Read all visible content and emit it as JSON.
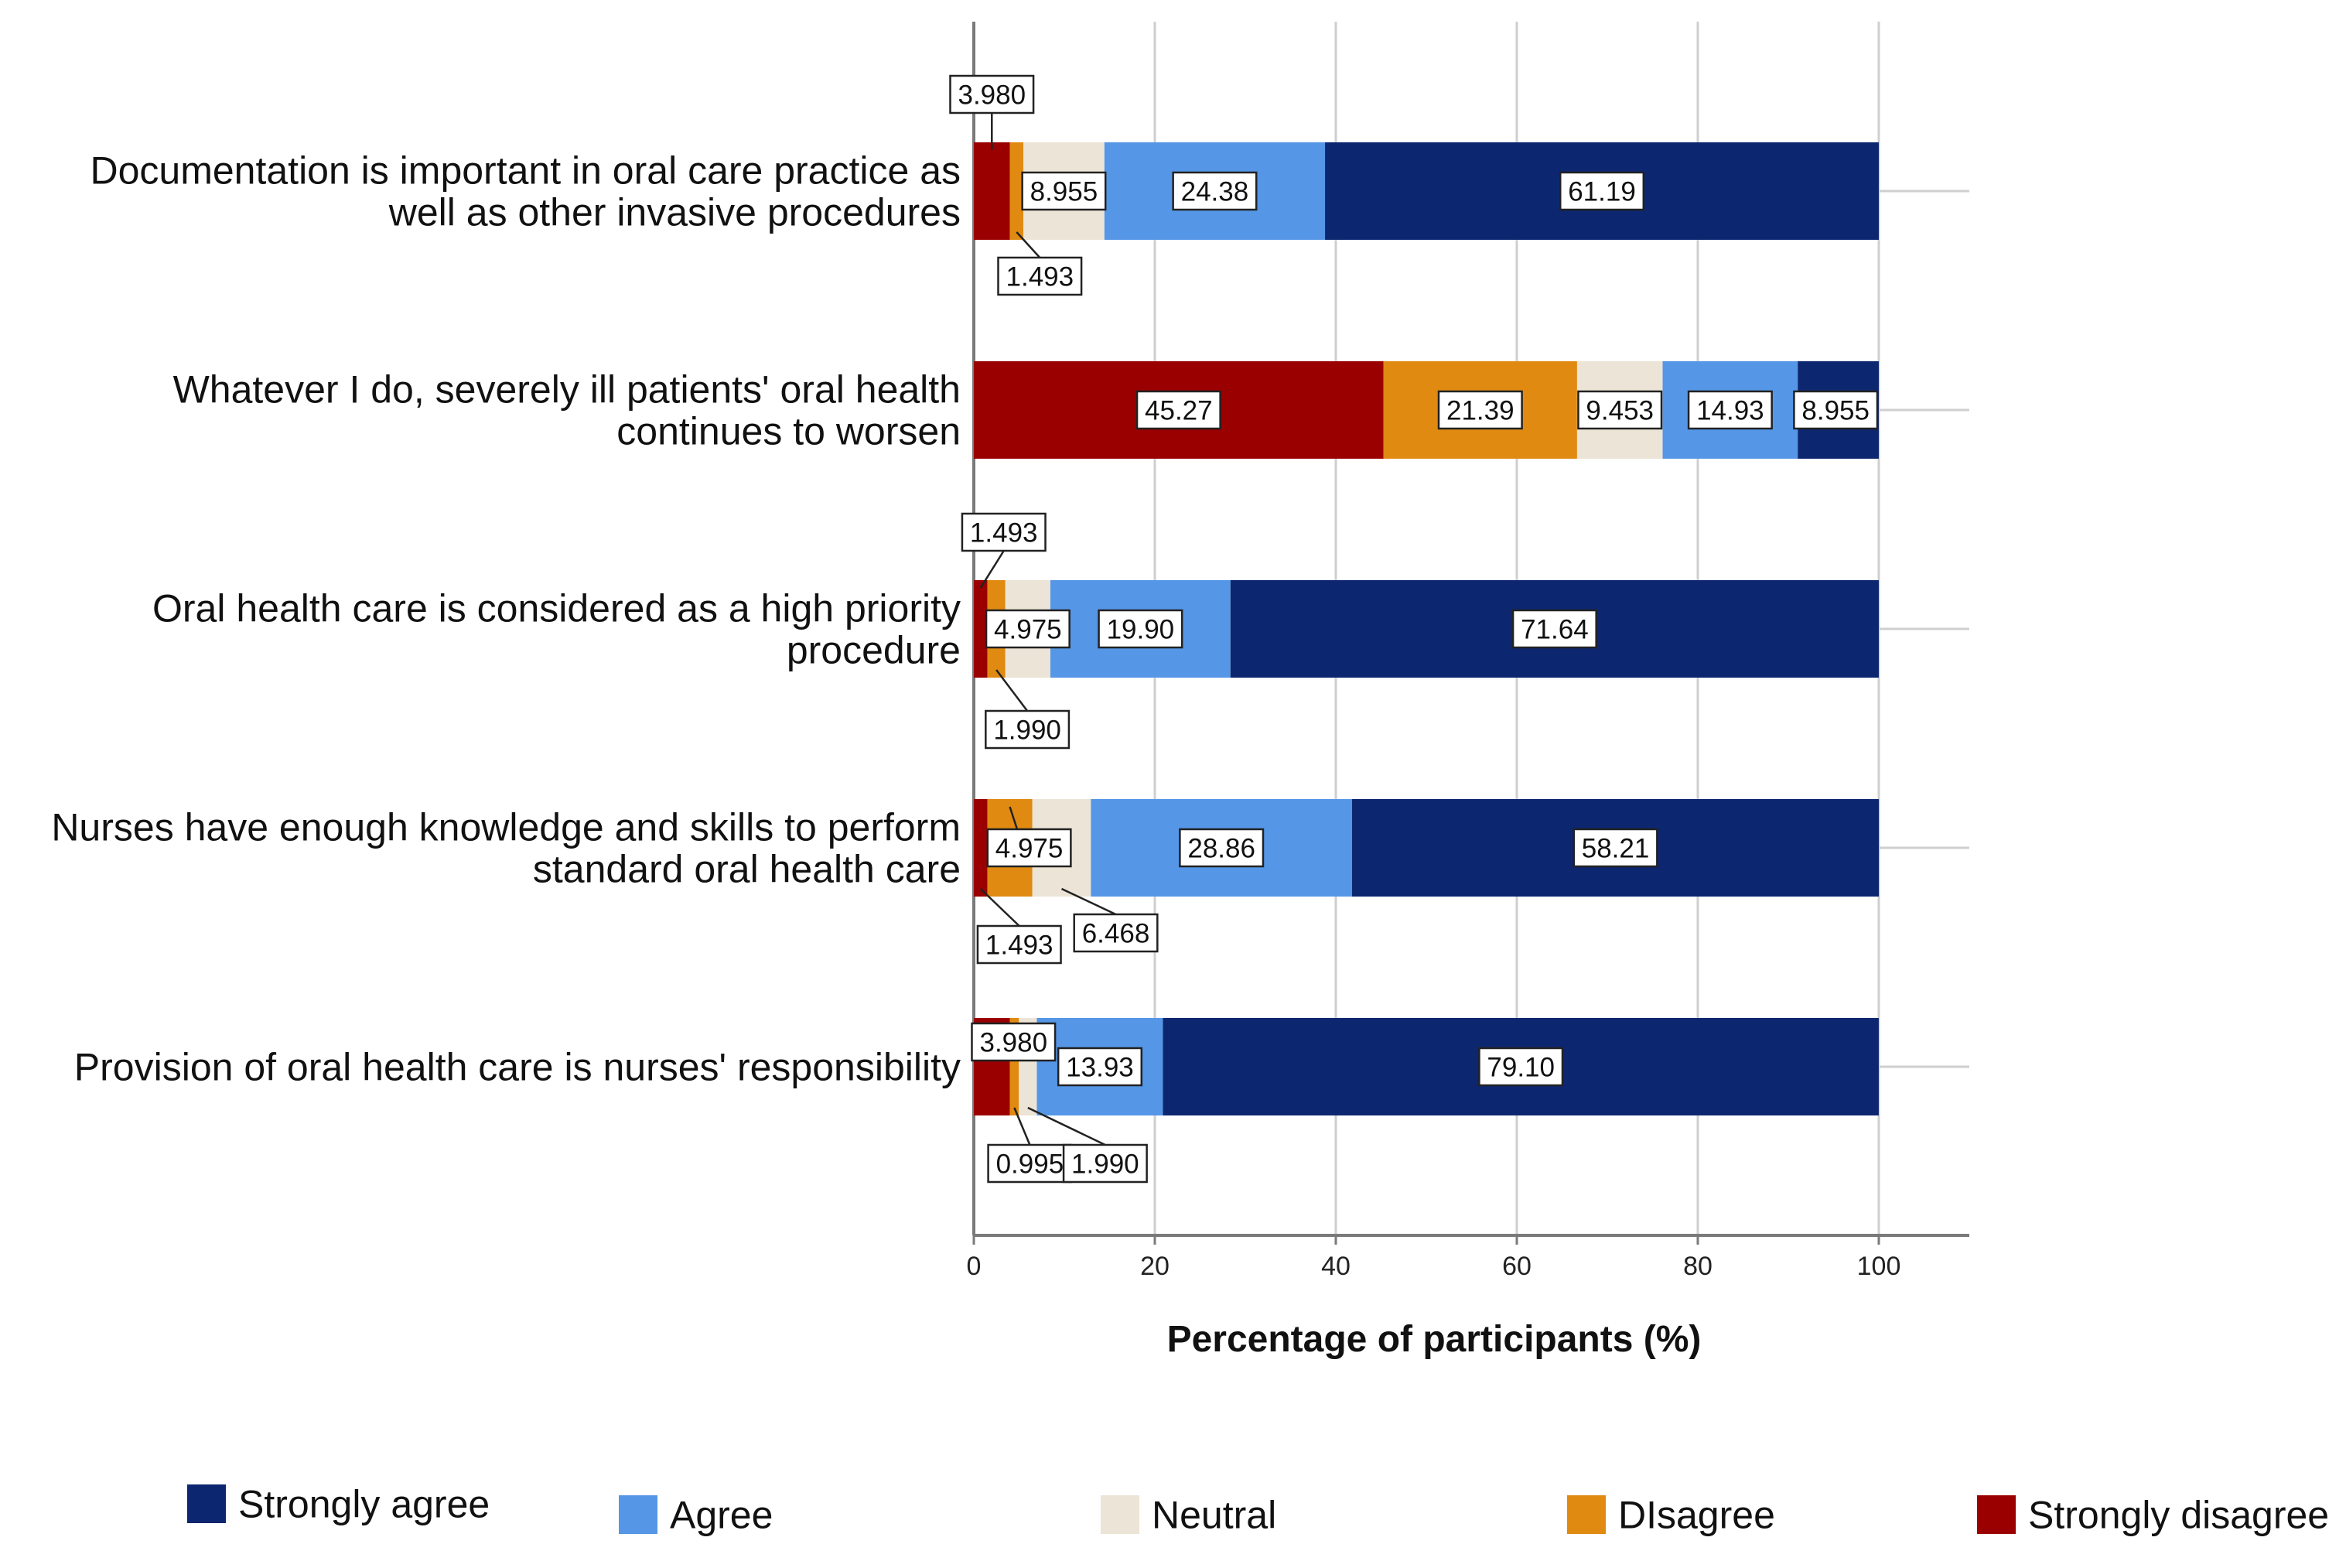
{
  "chart_data": {
    "type": "bar",
    "orientation": "horizontal",
    "stacked": true,
    "title": "",
    "xlabel": "Percentage of participants (%)",
    "ylabel": "",
    "xlim": [
      0,
      110
    ],
    "xticks": [
      0,
      20,
      40,
      60,
      80,
      100
    ],
    "grid": true,
    "legend_position": "bottom",
    "categories": [
      [
        "Documentation is important in oral care practice as",
        "well as other invasive procedures"
      ],
      [
        "Whatever I do, severely ill patients' oral health",
        "continues to worsen"
      ],
      [
        "Oral health care is considered as a high priority",
        "procedure"
      ],
      [
        "Nurses have enough knowledge and skills to perform",
        "standard oral health care"
      ],
      [
        "Provision of oral health care is nurses' responsibility"
      ]
    ],
    "series": [
      {
        "name": "Strongly disagree",
        "color": "#9b0000",
        "values": [
          3.98,
          45.27,
          1.493,
          1.493,
          3.98
        ],
        "labels": [
          "3.980",
          "45.27",
          "1.493",
          "1.493",
          "3.980"
        ]
      },
      {
        "name": "Disagree",
        "color": "#e08a12",
        "values": [
          1.493,
          21.39,
          1.99,
          4.975,
          0.995
        ],
        "labels": [
          "1.493",
          "21.39",
          "1.990",
          "4.975",
          "0.995"
        ]
      },
      {
        "name": "Neutral",
        "color": "#ece4d6",
        "values": [
          8.955,
          9.453,
          4.975,
          6.468,
          1.99
        ],
        "labels": [
          "8.955",
          "9.453",
          "4.975",
          "6.468",
          "1.990"
        ]
      },
      {
        "name": "Agree",
        "color": "#5596e6",
        "values": [
          24.38,
          14.93,
          19.9,
          28.86,
          13.93
        ],
        "labels": [
          "24.38",
          "14.93",
          "19.90",
          "28.86",
          "13.93"
        ]
      },
      {
        "name": "Strongly agree",
        "color": "#0c2670",
        "values": [
          61.19,
          8.955,
          71.64,
          58.21,
          79.1
        ],
        "labels": [
          "61.19",
          "8.955",
          "71.64",
          "58.21",
          "79.10"
        ]
      }
    ],
    "legend": [
      {
        "name": "Strongly agree",
        "color": "#0c2670"
      },
      {
        "name": "Agree",
        "color": "#5596e6"
      },
      {
        "name": "Neutral",
        "color": "#ece4d6"
      },
      {
        "name": "DIsagree",
        "color": "#e08a12"
      },
      {
        "name": "Strongly disagree",
        "color": "#9b0000"
      }
    ]
  }
}
